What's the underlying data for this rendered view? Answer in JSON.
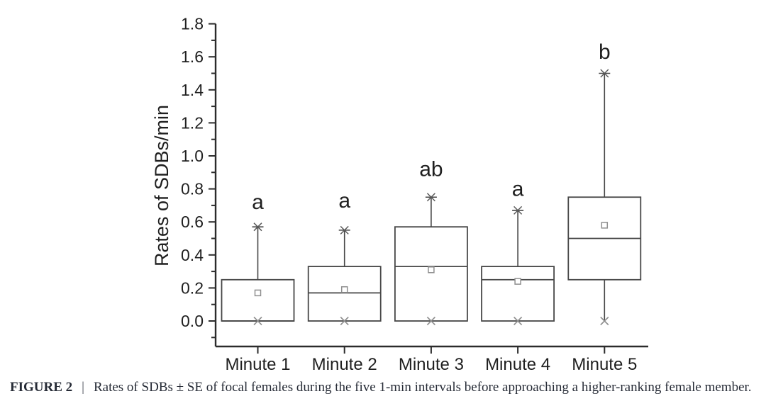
{
  "figure": {
    "caption_label": "FIGURE 2",
    "caption_separator": "|",
    "caption_text": "Rates of SDBs ± SE of focal females during the five 1-min intervals before approaching a higher-ranking female member."
  },
  "chart_data": {
    "type": "box",
    "title": "",
    "xlabel": "",
    "ylabel": "Rates of SDBs/min",
    "ylim": [
      -0.155,
      1.8
    ],
    "ytick_values": [
      0.0,
      0.2,
      0.4,
      0.6,
      0.8,
      1.0,
      1.2,
      1.4,
      1.6,
      1.8
    ],
    "ytick_labels": [
      "0.0",
      "0.2",
      "0.4",
      "0.6",
      "0.8",
      "1.0",
      "1.2",
      "1.4",
      "1.6",
      "1.8"
    ],
    "ytick_minor_values": [
      -0.1,
      0.1,
      0.3,
      0.5,
      0.7,
      0.9,
      1.1,
      1.3,
      1.5,
      1.7
    ],
    "grid": false,
    "legend": "none",
    "categories": [
      "Minute 1",
      "Minute 2",
      "Minute 3",
      "Minute 4",
      "Minute 5"
    ],
    "series": [
      {
        "category": "Minute 1",
        "q1": 0.0,
        "median": 0.0,
        "q3": 0.25,
        "whisker_low": 0.0,
        "whisker_high": 0.57,
        "mean": 0.17,
        "sig_letter": "a",
        "sig_letter_y": 0.72
      },
      {
        "category": "Minute 2",
        "q1": 0.0,
        "median": 0.17,
        "q3": 0.33,
        "whisker_low": 0.0,
        "whisker_high": 0.55,
        "mean": 0.19,
        "sig_letter": "a",
        "sig_letter_y": 0.73
      },
      {
        "category": "Minute 3",
        "q1": 0.0,
        "median": 0.33,
        "q3": 0.57,
        "whisker_low": 0.0,
        "whisker_high": 0.75,
        "mean": 0.31,
        "sig_letter": "ab",
        "sig_letter_y": 0.92
      },
      {
        "category": "Minute 4",
        "q1": 0.0,
        "median": 0.25,
        "q3": 0.33,
        "whisker_low": 0.0,
        "whisker_high": 0.67,
        "mean": 0.24,
        "sig_letter": "a",
        "sig_letter_y": 0.8
      },
      {
        "category": "Minute 5",
        "q1": 0.25,
        "median": 0.5,
        "q3": 0.75,
        "whisker_low": 0.0,
        "whisker_high": 1.5,
        "mean": 0.58,
        "sig_letter": "b",
        "sig_letter_y": 1.63
      }
    ],
    "markers": {
      "mean": "open-square",
      "whisker_high_end": "asterisk-star",
      "whisker_low_end": "x-cross"
    }
  },
  "colors": {
    "background": "#ffffff",
    "axis_line": "#2b2b2b",
    "box_line": "#464646",
    "marker_gray": "#8f8f8f",
    "star_gray": "#5a5a5a",
    "axis_text": "#1f1f1f",
    "caption_text": "#262b36"
  }
}
